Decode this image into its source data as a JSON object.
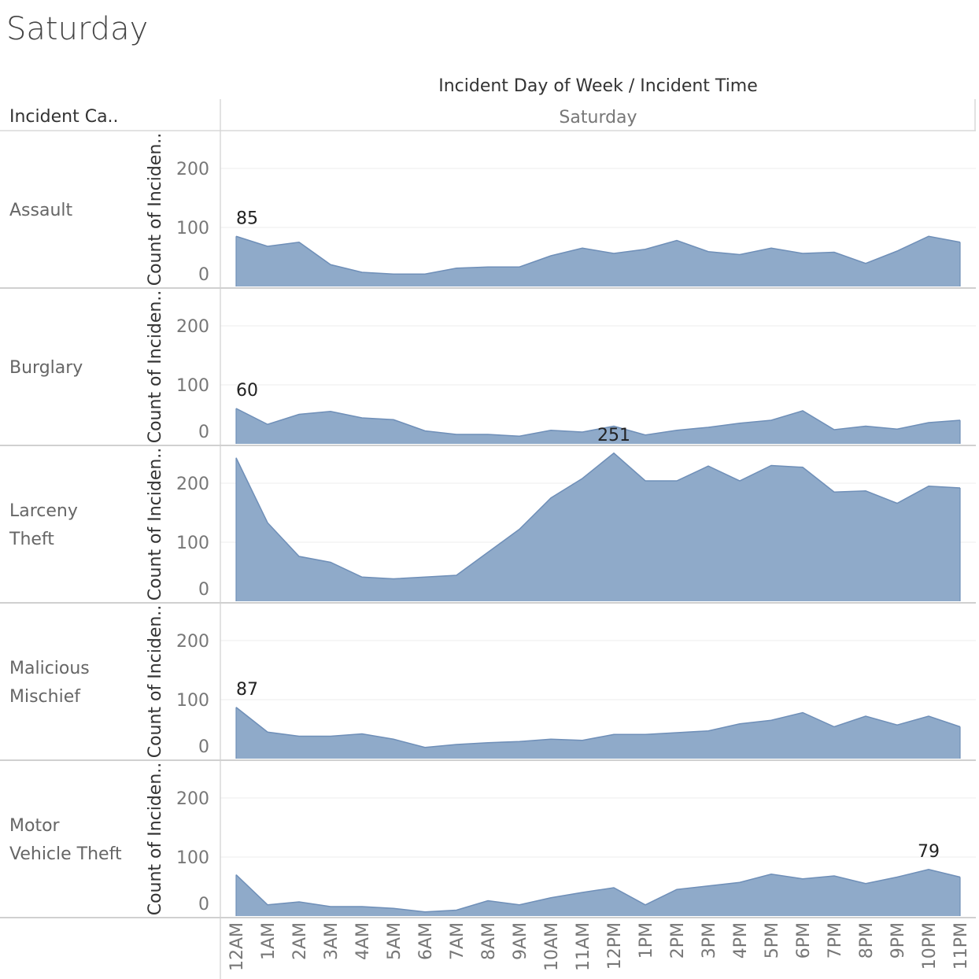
{
  "page": {
    "title": "Saturday"
  },
  "chart_data": {
    "type": "area",
    "header_title": "Incident Day of Week  /  Incident Time",
    "row_header": "Incident Ca..",
    "column_label": "Saturday",
    "ylabel": "Count of Inciden..",
    "ylim": [
      0,
      251
    ],
    "yticks": [
      0,
      100,
      200
    ],
    "x": [
      "12AM",
      "1AM",
      "2AM",
      "3AM",
      "4AM",
      "5AM",
      "6AM",
      "7AM",
      "8AM",
      "9AM",
      "10AM",
      "11AM",
      "12PM",
      "1PM",
      "2PM",
      "3PM",
      "4PM",
      "5PM",
      "6PM",
      "7PM",
      "8PM",
      "9PM",
      "10PM",
      "11PM"
    ],
    "fill_color": "#8faac9",
    "line_color": "#6f8fb8",
    "series": [
      {
        "category": "Assault",
        "values": [
          85,
          68,
          75,
          37,
          24,
          21,
          21,
          31,
          33,
          33,
          52,
          65,
          56,
          63,
          78,
          59,
          54,
          65,
          56,
          58,
          39,
          60,
          85,
          75
        ],
        "label_index": 0,
        "label_text": "85"
      },
      {
        "category": "Burglary",
        "values": [
          60,
          33,
          50,
          55,
          44,
          41,
          22,
          16,
          16,
          13,
          23,
          20,
          30,
          15,
          23,
          28,
          35,
          40,
          56,
          24,
          30,
          25,
          36,
          40
        ],
        "label_index": 0,
        "label_text": "60"
      },
      {
        "category": "Larceny Theft",
        "values": [
          243,
          133,
          76,
          66,
          41,
          38,
          41,
          44,
          83,
          122,
          175,
          208,
          251,
          204,
          204,
          229,
          204,
          230,
          227,
          185,
          187,
          166,
          195,
          192
        ],
        "label_index": 12,
        "label_text": "251"
      },
      {
        "category": "Malicious Mischief",
        "values": [
          87,
          45,
          38,
          38,
          42,
          33,
          19,
          24,
          27,
          29,
          33,
          31,
          41,
          41,
          44,
          47,
          59,
          65,
          78,
          54,
          72,
          57,
          72,
          54
        ],
        "label_index": 0,
        "label_text": "87"
      },
      {
        "category": "Motor Vehicle Theft",
        "values": [
          70,
          19,
          24,
          16,
          16,
          13,
          7,
          10,
          26,
          19,
          31,
          40,
          48,
          19,
          45,
          51,
          57,
          71,
          63,
          68,
          55,
          66,
          79,
          66
        ],
        "label_index": 22,
        "label_text": "79"
      }
    ]
  }
}
